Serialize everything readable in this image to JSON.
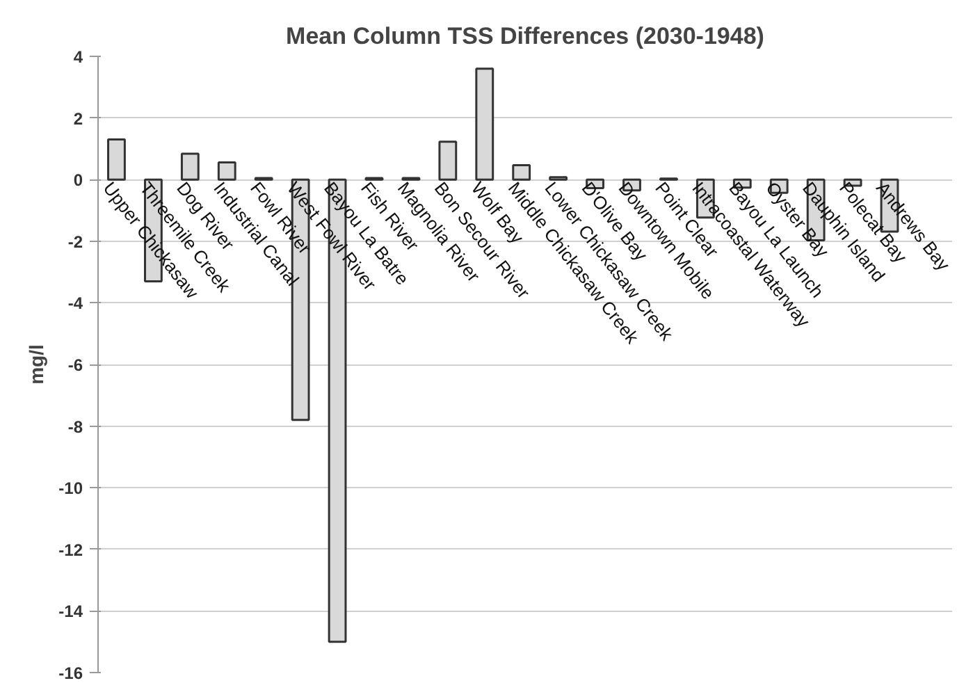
{
  "chart_data": {
    "type": "bar",
    "title": "Mean Column TSS Differences (2030-1948)",
    "ylabel": "mg/l",
    "categories": [
      "Upper Chickasaw",
      "Threemile Creek",
      "Dog River",
      "Industrial Canal",
      "Fowl River",
      "West Fowl River",
      "Bayou La Batre",
      "Fish River",
      "Magnolia River",
      "Bon Secour River",
      "Wolf Bay",
      "Middle Chickasaw Creek",
      "Lower Chickasaw Creek",
      "D'Olive Bay",
      "Downtown Mobile",
      "Point Clear",
      "Intracoastal Waterway",
      "Bayou La Launch",
      "Oyster Bay",
      "Dauphin Island",
      "Polecat Bay",
      "Andrews Bay"
    ],
    "values": [
      1.3,
      -3.3,
      0.84,
      0.56,
      0.05,
      -7.8,
      -15.0,
      0.05,
      0.05,
      1.23,
      3.6,
      0.47,
      0.08,
      -0.28,
      -0.35,
      0.03,
      -1.23,
      -0.26,
      -0.43,
      -1.97,
      -0.2,
      -1.69
    ],
    "color": "#d9d9d9",
    "ylim": [
      -16,
      4
    ],
    "yticks": [
      -16,
      -14,
      -12,
      -10,
      -8,
      -6,
      -4,
      -2,
      0,
      2,
      4
    ],
    "grid": "y"
  }
}
